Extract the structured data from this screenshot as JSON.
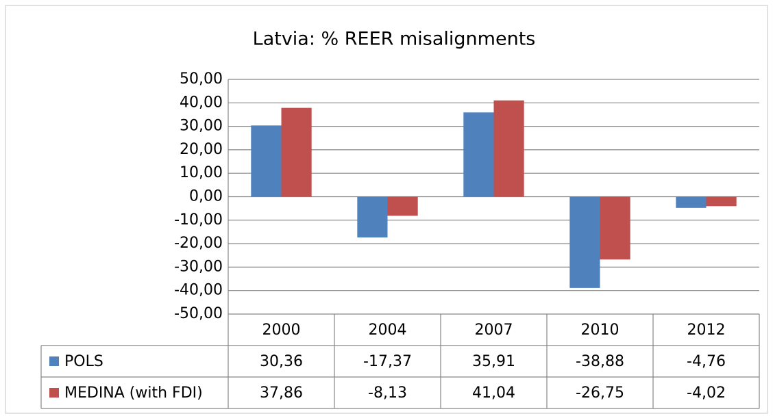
{
  "chart_data": {
    "type": "bar",
    "title": "Latvia: % REER misalignments",
    "categories": [
      "2000",
      "2004",
      "2007",
      "2010",
      "2012"
    ],
    "series": [
      {
        "name": "POLS",
        "color": "#4f81bd",
        "values": [
          30.36,
          -17.37,
          35.91,
          -38.88,
          -4.76
        ],
        "value_labels": [
          "30,36",
          "-17,37",
          "35,91",
          "-38,88",
          "-4,76"
        ]
      },
      {
        "name": "MEDINA (with FDI)",
        "color": "#c0504d",
        "values": [
          37.86,
          -8.13,
          41.04,
          -26.75,
          -4.02
        ],
        "value_labels": [
          "37,86",
          "-8,13",
          "41,04",
          "-26,75",
          "-4,02"
        ]
      }
    ],
    "ylim": [
      -50,
      50
    ],
    "yticks": [
      {
        "value": -50,
        "label": "-50,00"
      },
      {
        "value": -40,
        "label": "-40,00"
      },
      {
        "value": -30,
        "label": "-30,00"
      },
      {
        "value": -20,
        "label": "-20,00"
      },
      {
        "value": -10,
        "label": "-10,00"
      },
      {
        "value": 0,
        "label": "0,00"
      },
      {
        "value": 10,
        "label": "10,00"
      },
      {
        "value": 20,
        "label": "20,00"
      },
      {
        "value": 30,
        "label": "30,00"
      },
      {
        "value": 40,
        "label": "40,00"
      },
      {
        "value": 50,
        "label": "50,00"
      }
    ],
    "grid": true
  }
}
